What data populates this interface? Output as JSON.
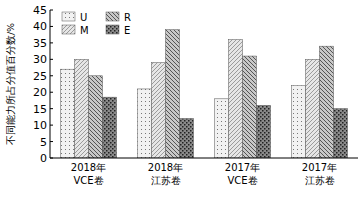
{
  "chart_data": {
    "type": "bar",
    "y_label": "不同能力所占分值百分数/%",
    "categories": [
      "2018年\nVCE卷",
      "2018年\n江苏卷",
      "2017年\nVCE卷",
      "2017年\n江苏卷"
    ],
    "series": [
      {
        "name": "U",
        "color": "#f2f2f2",
        "values": [
          27,
          21,
          18,
          22
        ]
      },
      {
        "name": "M",
        "color": "#e6e6e6",
        "values": [
          30,
          29,
          36,
          30
        ]
      },
      {
        "name": "R",
        "color": "#c8c8c8",
        "values": [
          25,
          39,
          31,
          34
        ]
      },
      {
        "name": "E",
        "color": "#8a8a8a",
        "values": [
          18.5,
          12,
          16,
          15
        ]
      }
    ],
    "ylim": [
      0,
      45
    ],
    "yticks": [
      0,
      5,
      10,
      15,
      20,
      25,
      30,
      35,
      40,
      45
    ],
    "legend": "upper left",
    "grid": false
  }
}
